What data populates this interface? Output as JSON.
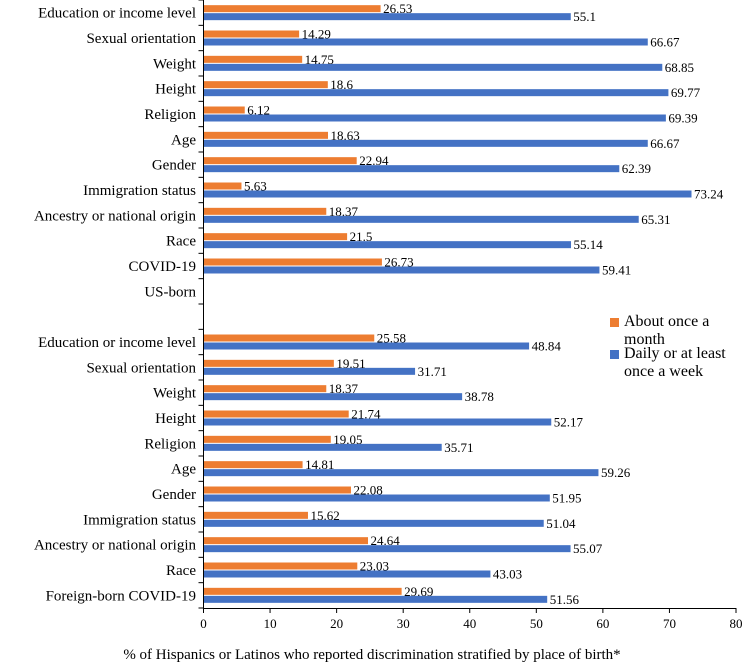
{
  "chart_data": {
    "type": "bar",
    "orientation": "horizontal",
    "title": "",
    "xlabel": "% of Hispanics or Latinos who reported discrimination stratified by place of birth*",
    "ylabel": "",
    "xlim": [
      0,
      80
    ],
    "xticks": [
      0,
      10,
      20,
      30,
      40,
      50,
      60,
      70,
      80
    ],
    "grid": false,
    "legend_position": "right",
    "categories": [
      "Education or income level",
      "Sexual orientation",
      "Weight",
      "Height",
      "Religion",
      "Age",
      "Gender",
      "Immigration status",
      "Ancestry or national origin",
      "Race",
      "COVID-19",
      "US-born",
      "",
      "Education or income level",
      "Sexual orientation",
      "Weight",
      "Height",
      "Religion",
      "Age",
      "Gender",
      "Immigration status",
      "Ancestry or national origin",
      "Race",
      "Foreign-born COVID-19"
    ],
    "series": [
      {
        "name": "About once a month",
        "color": "#ED7D31",
        "values": [
          26.53,
          14.29,
          14.75,
          18.6,
          6.12,
          18.63,
          22.94,
          5.63,
          18.37,
          21.5,
          26.73,
          null,
          null,
          25.58,
          19.51,
          18.37,
          21.74,
          19.05,
          14.81,
          22.08,
          15.62,
          24.64,
          23.03,
          29.69
        ],
        "labels": [
          "26.53",
          "14.29",
          "14.75",
          "18.6",
          "6.12",
          "18.63",
          "22.94",
          "5.63",
          "18.37",
          "21.5",
          "26.73",
          null,
          null,
          "25.58",
          "19.51",
          "18.37",
          "21.74",
          "19.05",
          "14.81",
          "22.08",
          "15.62",
          "24.64",
          "23.03",
          "29.69"
        ]
      },
      {
        "name": "Daily or at least once a week",
        "color": "#4472C4",
        "values": [
          55.1,
          66.67,
          68.85,
          69.77,
          69.39,
          66.67,
          62.39,
          73.24,
          65.31,
          55.14,
          59.41,
          null,
          null,
          48.84,
          31.71,
          38.78,
          52.17,
          35.71,
          59.26,
          51.95,
          51.04,
          55.07,
          43.03,
          51.56
        ],
        "labels": [
          "55.1",
          "66.67",
          "68.85",
          "69.77",
          "69.39",
          "66.67",
          "62.39",
          "73.24",
          "65.31",
          "55.14",
          "59.41",
          null,
          null,
          "48.84",
          "31.71",
          "38.78",
          "52.17",
          "35.71",
          "59.26",
          "51.95",
          "51.04",
          "55.07",
          "43.03",
          "51.56"
        ]
      }
    ],
    "legend": {
      "entries": [
        {
          "label_line1": "About once a",
          "label_line2": "month",
          "color": "#ED7D31"
        },
        {
          "label_line1": "Daily or at least",
          "label_line2": "once a week",
          "color": "#4472C4"
        }
      ]
    }
  }
}
